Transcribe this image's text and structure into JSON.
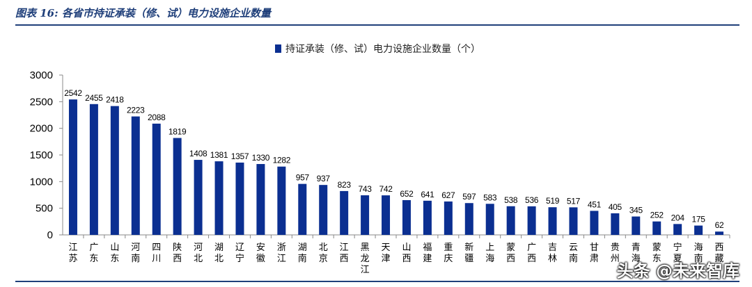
{
  "figure_title": "图表 16:  各省市持证承装（修、试）电力设施企业数量",
  "watermark": "头条 @未来智库",
  "colors": {
    "bar": "#0b2f91",
    "title": "#1f3f7a"
  },
  "chart_data": {
    "type": "bar",
    "legend_position": "top",
    "series_name": "持证承装（修、试）电力设施企业数量（个）",
    "ylim": [
      0,
      3000
    ],
    "yticks": [
      0,
      500,
      1000,
      1500,
      2000,
      2500,
      3000
    ],
    "categories": [
      "江苏",
      "广东",
      "山东",
      "河南",
      "四川",
      "陕西",
      "河北",
      "湖北",
      "辽宁",
      "安徽",
      "浙江",
      "湖南",
      "北京",
      "江西",
      "黑龙江",
      "天津",
      "山西",
      "福建",
      "重庆",
      "新疆",
      "上海",
      "蒙西",
      "广西",
      "吉林",
      "云南",
      "甘肃",
      "贵州",
      "青海",
      "蒙东",
      "宁夏",
      "海南",
      "西藏"
    ],
    "values": [
      2542,
      2455,
      2418,
      2223,
      2088,
      1819,
      1408,
      1381,
      1357,
      1330,
      1282,
      957,
      937,
      823,
      743,
      742,
      652,
      641,
      627,
      597,
      583,
      538,
      536,
      519,
      517,
      451,
      405,
      345,
      252,
      204,
      175,
      62
    ],
    "data_labels": [
      "2542",
      "2455",
      "2418",
      "2223",
      "2088",
      "1819",
      "1408",
      "1381",
      "1357",
      "1330",
      "1282",
      "957",
      "937",
      "823",
      "743",
      "742",
      "652",
      "641",
      "627",
      "597",
      "583",
      "538",
      "536",
      "519",
      "517",
      "451",
      "405",
      "345",
      "252",
      "204",
      "175",
      "62"
    ]
  }
}
